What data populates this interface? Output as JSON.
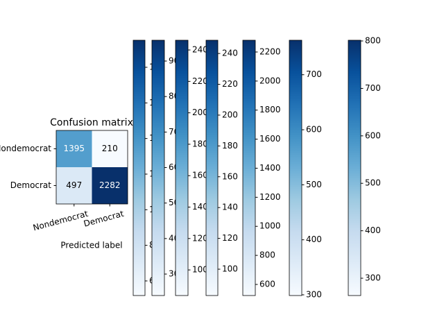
{
  "chart_data": {
    "type": "heatmap",
    "title": "Confusion matrix",
    "xlabel": "Predicted label",
    "x_categories": [
      "Nondemocrat",
      "Democrat"
    ],
    "y_categories": [
      "Nondemocrat",
      "Democrat"
    ],
    "values": [
      [
        1395,
        210
      ],
      [
        497,
        2282
      ]
    ],
    "colormap": "Blues",
    "colorbars": [
      {
        "ylim": [
          51.8,
          195.2
        ],
        "yticks": [
          60,
          80,
          100,
          120,
          140,
          160,
          180
        ]
      },
      {
        "ylim": [
          239.5,
          958.6
        ],
        "yticks": [
          300,
          400,
          500,
          600,
          700,
          800,
          900
        ]
      },
      {
        "ylim": [
          83.7,
          246.2
        ],
        "yticks": [
          100,
          120,
          140,
          160,
          180,
          200,
          220,
          240
        ]
      },
      {
        "ylim": [
          82.9,
          248.6
        ],
        "yticks": [
          100,
          120,
          140,
          160,
          180,
          200,
          220,
          240
        ]
      },
      {
        "ylim": [
          523.6,
          2281
        ],
        "yticks": [
          600,
          800,
          1000,
          1200,
          1400,
          1600,
          1800,
          2000,
          2200
        ]
      },
      {
        "ylim": [
          298.7,
          762.7
        ],
        "yticks": [
          300,
          400,
          500,
          600,
          700
        ]
      },
      {
        "ylim": [
          263.5,
          801.5
        ],
        "yticks": [
          300,
          400,
          500,
          600,
          700,
          800
        ]
      }
    ]
  }
}
